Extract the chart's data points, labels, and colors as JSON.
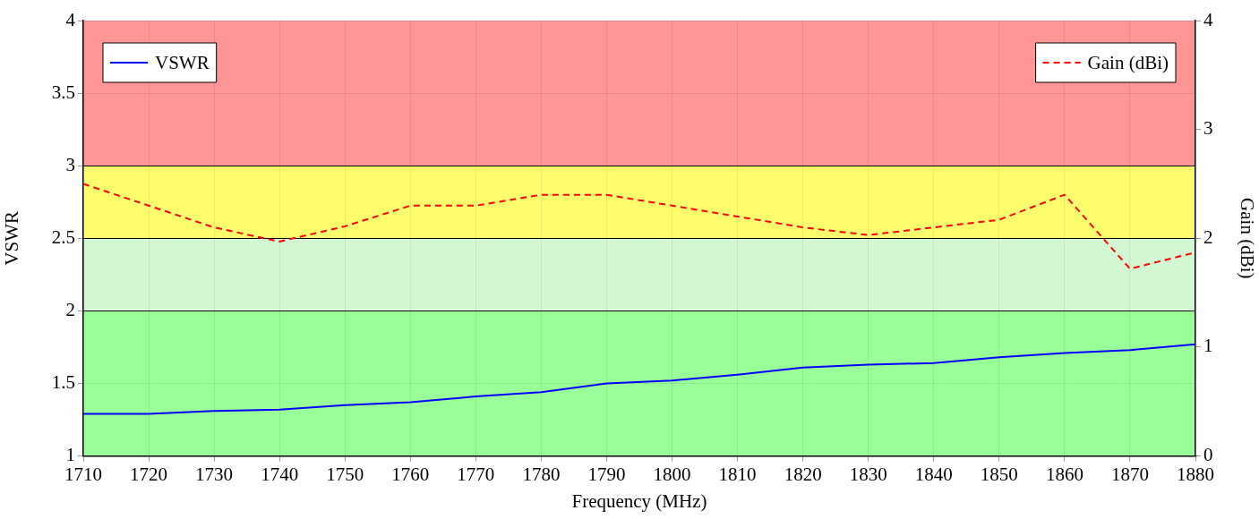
{
  "chart_data": {
    "type": "line",
    "xlabel": "Frequency (MHz)",
    "ylabel": "VSWR",
    "y2label": "Gain (dBi)",
    "x": [
      1710,
      1720,
      1730,
      1740,
      1750,
      1760,
      1770,
      1780,
      1790,
      1800,
      1810,
      1820,
      1830,
      1840,
      1850,
      1860,
      1870,
      1880
    ],
    "series": [
      {
        "name": "VSWR",
        "color": "#0000ff",
        "line_style": "solid",
        "values": [
          1.29,
          1.29,
          1.31,
          1.32,
          1.35,
          1.37,
          1.41,
          1.44,
          1.5,
          1.52,
          1.56,
          1.61,
          1.63,
          1.64,
          1.68,
          1.71,
          1.73,
          1.77
        ]
      },
      {
        "name": "Gain (dBi)",
        "color": "#ff0000",
        "line_style": "dashed",
        "axis": "y2",
        "values": [
          2.5,
          2.3,
          2.1,
          1.97,
          2.11,
          2.3,
          2.3,
          2.4,
          2.4,
          2.3,
          2.2,
          2.1,
          2.03,
          2.1,
          2.17,
          2.4,
          1.72,
          1.87
        ]
      }
    ],
    "xlim": [
      1710,
      1880
    ],
    "xticks": [
      1710,
      1720,
      1730,
      1740,
      1750,
      1760,
      1770,
      1780,
      1790,
      1800,
      1810,
      1820,
      1830,
      1840,
      1850,
      1860,
      1870,
      1880
    ],
    "ylim": [
      1,
      4
    ],
    "yticks": [
      1,
      1.5,
      2,
      2.5,
      3,
      3.5,
      4
    ],
    "y2lim": [
      0,
      4
    ],
    "y2ticks": [
      0,
      1,
      2,
      3,
      4
    ],
    "bands": [
      {
        "axis": "y",
        "from": 1,
        "to": 2,
        "color": "#99ff99"
      },
      {
        "axis": "y",
        "from": 2,
        "to": 2.5,
        "color": "#d3f7d3"
      },
      {
        "axis": "y",
        "from": 2.5,
        "to": 3,
        "color": "#ffff6e"
      },
      {
        "axis": "y",
        "from": 3,
        "to": 4,
        "color": "#ff9595"
      }
    ],
    "grid": true,
    "legend": "top left",
    "marker": "none"
  }
}
